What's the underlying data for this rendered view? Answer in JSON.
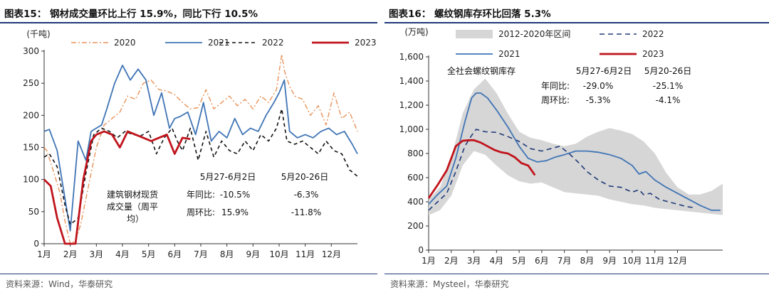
{
  "chart_data": [
    {
      "type": "line",
      "title": "图表15： 钢材成交量环比上行 15.9%，同比下行 10.5%",
      "unit": "(千吨)",
      "ylim": [
        0,
        300
      ],
      "yticks": [
        0,
        50,
        100,
        150,
        200,
        250,
        300
      ],
      "xlim": [
        1,
        13
      ],
      "xticks": [
        "1月",
        "2月",
        "3月",
        "4月",
        "5月",
        "6月",
        "7月",
        "8月",
        "9月",
        "10月",
        "11月",
        "12月"
      ],
      "legend": [
        "2020",
        "2021",
        "2022",
        "2023"
      ],
      "source": "资料来源：Wind，华泰研究",
      "series": [
        {
          "name": "2020",
          "color": "#e8935a",
          "dash": "7,3,2,3",
          "width": 1.4,
          "x": [
            1.0,
            1.1,
            1.3,
            1.6,
            1.8,
            2.0,
            2.2,
            2.4,
            2.7,
            3.0,
            3.3,
            3.6,
            3.9,
            4.2,
            4.5,
            4.8,
            5.1,
            5.4,
            5.7,
            6.0,
            6.3,
            6.6,
            6.9,
            7.2,
            7.5,
            7.8,
            8.1,
            8.4,
            8.7,
            9.0,
            9.3,
            9.6,
            9.9,
            10.1,
            10.2,
            10.4,
            10.6,
            10.9,
            11.2,
            11.5,
            11.8,
            12.1,
            12.4,
            12.7,
            13.0
          ],
          "y": [
            150,
            145,
            120,
            80,
            35,
            0,
            5,
            30,
            90,
            150,
            185,
            195,
            205,
            230,
            225,
            250,
            255,
            240,
            238,
            232,
            220,
            210,
            212,
            240,
            210,
            220,
            230,
            215,
            225,
            210,
            230,
            220,
            240,
            295,
            270,
            245,
            230,
            225,
            200,
            215,
            185,
            235,
            195,
            205,
            175
          ]
        },
        {
          "name": "2021",
          "color": "#3f74b5",
          "dash": "",
          "width": 1.8,
          "x": [
            1.0,
            1.2,
            1.5,
            1.8,
            2.0,
            2.3,
            2.6,
            2.8,
            3.0,
            3.2,
            3.4,
            3.7,
            4.0,
            4.3,
            4.6,
            4.9,
            5.2,
            5.5,
            5.8,
            6.0,
            6.2,
            6.5,
            6.8,
            7.1,
            7.4,
            7.7,
            8.0,
            8.3,
            8.6,
            8.9,
            9.2,
            9.5,
            9.8,
            10.0,
            10.2,
            10.4,
            10.7,
            11.0,
            11.3,
            11.6,
            11.9,
            12.2,
            12.5,
            12.8,
            13.0
          ],
          "y": [
            175,
            178,
            145,
            70,
            20,
            160,
            130,
            175,
            180,
            185,
            210,
            250,
            278,
            255,
            272,
            255,
            200,
            235,
            180,
            195,
            198,
            205,
            170,
            220,
            160,
            175,
            165,
            195,
            170,
            180,
            175,
            200,
            220,
            235,
            255,
            175,
            165,
            170,
            165,
            175,
            180,
            170,
            175,
            155,
            140
          ]
        },
        {
          "name": "2022",
          "color": "#111111",
          "dash": "5,4",
          "width": 1.6,
          "x": [
            1.0,
            1.2,
            1.5,
            1.8,
            2.0,
            2.3,
            2.6,
            2.9,
            3.2,
            3.5,
            3.8,
            4.1,
            4.4,
            4.7,
            5.0,
            5.3,
            5.6,
            5.9,
            6.1,
            6.3,
            6.6,
            6.9,
            7.2,
            7.5,
            7.8,
            8.1,
            8.4,
            8.7,
            9.0,
            9.3,
            9.6,
            9.9,
            10.1,
            10.3,
            10.6,
            10.9,
            11.2,
            11.5,
            11.8,
            12.1,
            12.4,
            12.7,
            13.0
          ],
          "y": [
            135,
            140,
            120,
            60,
            30,
            40,
            110,
            170,
            180,
            175,
            165,
            175,
            170,
            168,
            175,
            140,
            165,
            180,
            160,
            145,
            180,
            130,
            175,
            135,
            160,
            145,
            140,
            160,
            145,
            170,
            160,
            180,
            210,
            160,
            155,
            160,
            150,
            140,
            160,
            145,
            140,
            115,
            105
          ]
        },
        {
          "name": "2023",
          "color": "#c0141c",
          "dash": "",
          "width": 2.8,
          "x": [
            1.0,
            1.25,
            1.5,
            1.8,
            2.0,
            2.2,
            2.5,
            2.8,
            3.0,
            3.3,
            3.6,
            3.9,
            4.2,
            4.5,
            4.8,
            5.1,
            5.4,
            5.7,
            6.0,
            6.3,
            6.6
          ],
          "y": [
            100,
            90,
            40,
            0,
            0,
            0,
            100,
            160,
            170,
            175,
            170,
            150,
            175,
            170,
            165,
            160,
            165,
            170,
            140,
            165,
            163
          ]
        }
      ],
      "annotation": {
        "header": [
          "5月27-6月2日",
          "5月20-26日"
        ],
        "label": "建筑钢材现货成交量（周平均）",
        "label_lines": [
          "建筑钢材现货",
          "成交量（周平",
          "均）"
        ],
        "rows": [
          {
            "name": "年同比:",
            "a": "-10.5%",
            "b": "-6.3%"
          },
          {
            "name": "周环比:",
            "a": "15.9%",
            "b": "-11.8%"
          }
        ]
      }
    },
    {
      "type": "area",
      "title": "图表16： 螺纹钢库存环比回落 5.3%",
      "unit": "(万吨)",
      "ylim": [
        0,
        1600
      ],
      "yticks": [
        0,
        200,
        400,
        600,
        800,
        1000,
        1200,
        1400,
        1600
      ],
      "yticklabels": [
        "0",
        "200",
        "400",
        "600",
        "800",
        "1,000",
        "1,200",
        "1,400",
        "1,600"
      ],
      "xlim": [
        1,
        14
      ],
      "xticks": [
        "1月",
        "2月",
        "3月",
        "4月",
        "5月",
        "6月",
        "7月",
        "8月",
        "9月",
        "10月",
        "11月",
        "12月"
      ],
      "legend": [
        "2012-2020年区间",
        "2022",
        "2021",
        "2023"
      ],
      "source": "资料来源：Mysteel，华泰研究",
      "band": {
        "name": "2012-2020年区间",
        "color": "#d6d6d6",
        "x": [
          1.0,
          1.5,
          2.0,
          2.5,
          3.0,
          3.5,
          4.0,
          4.5,
          5.0,
          5.5,
          6.0,
          6.5,
          7.0,
          7.5,
          8.0,
          8.5,
          9.0,
          9.5,
          10.0,
          10.5,
          11.0,
          11.5,
          12.0,
          12.5,
          13.0,
          13.5,
          14.0
        ],
        "high": [
          420,
          520,
          760,
          1130,
          1330,
          1420,
          1300,
          1130,
          980,
          930,
          910,
          880,
          860,
          880,
          940,
          980,
          1010,
          990,
          960,
          900,
          800,
          640,
          520,
          460,
          460,
          490,
          550
        ],
        "low": [
          290,
          330,
          450,
          700,
          820,
          790,
          700,
          620,
          570,
          550,
          560,
          520,
          480,
          470,
          460,
          450,
          420,
          400,
          380,
          370,
          350,
          340,
          330,
          320,
          310,
          300,
          290
        ]
      },
      "series": [
        {
          "name": "2022",
          "color": "#1f3a78",
          "dash": "7,5",
          "width": 1.6,
          "x": [
            1.0,
            1.4,
            1.8,
            2.2,
            2.6,
            2.9,
            3.1,
            3.5,
            4.0,
            4.5,
            5.0,
            5.5,
            6.0,
            6.4,
            6.8,
            7.2,
            7.6,
            8.0,
            8.5,
            9.0,
            9.5,
            10.0,
            10.3,
            10.5,
            10.8,
            11.2,
            11.6,
            12.0,
            12.4,
            12.8
          ],
          "y": [
            330,
            400,
            470,
            650,
            860,
            950,
            1000,
            980,
            975,
            940,
            900,
            840,
            820,
            840,
            860,
            800,
            730,
            650,
            580,
            530,
            520,
            480,
            500,
            460,
            470,
            420,
            400,
            380,
            360,
            350
          ]
        },
        {
          "name": "2021",
          "color": "#3f74b5",
          "dash": "",
          "width": 1.8,
          "x": [
            1.0,
            1.4,
            1.8,
            2.2,
            2.6,
            2.9,
            3.1,
            3.3,
            3.6,
            4.0,
            4.5,
            5.0,
            5.4,
            5.8,
            6.2,
            6.6,
            7.0,
            7.5,
            8.0,
            8.5,
            9.0,
            9.5,
            10.0,
            10.3,
            10.6,
            11.0,
            11.5,
            12.0,
            12.5,
            13.0,
            13.5,
            13.9
          ],
          "y": [
            380,
            460,
            530,
            760,
            1060,
            1260,
            1300,
            1300,
            1260,
            1160,
            1020,
            860,
            760,
            730,
            740,
            770,
            790,
            820,
            820,
            810,
            790,
            760,
            700,
            630,
            650,
            580,
            520,
            470,
            420,
            370,
            330,
            330
          ]
        },
        {
          "name": "2023",
          "color": "#c0141c",
          "dash": "",
          "width": 2.8,
          "x": [
            1.0,
            1.4,
            1.8,
            2.2,
            2.5,
            2.8,
            3.0,
            3.3,
            3.6,
            3.9,
            4.2,
            4.5,
            4.8,
            5.1,
            5.4,
            5.7
          ],
          "y": [
            430,
            540,
            660,
            860,
            905,
            910,
            910,
            890,
            860,
            830,
            810,
            800,
            770,
            720,
            700,
            620
          ]
        }
      ],
      "annotation": {
        "label": "全社会螺纹钢库存",
        "header": [
          "5月27-6月2日",
          "5月20-26日"
        ],
        "rows": [
          {
            "name": "年同比:",
            "a": "-29.0%",
            "b": "-25.1%"
          },
          {
            "name": "周环比:",
            "a": "-5.3%",
            "b": "-4.1%"
          }
        ]
      }
    }
  ]
}
